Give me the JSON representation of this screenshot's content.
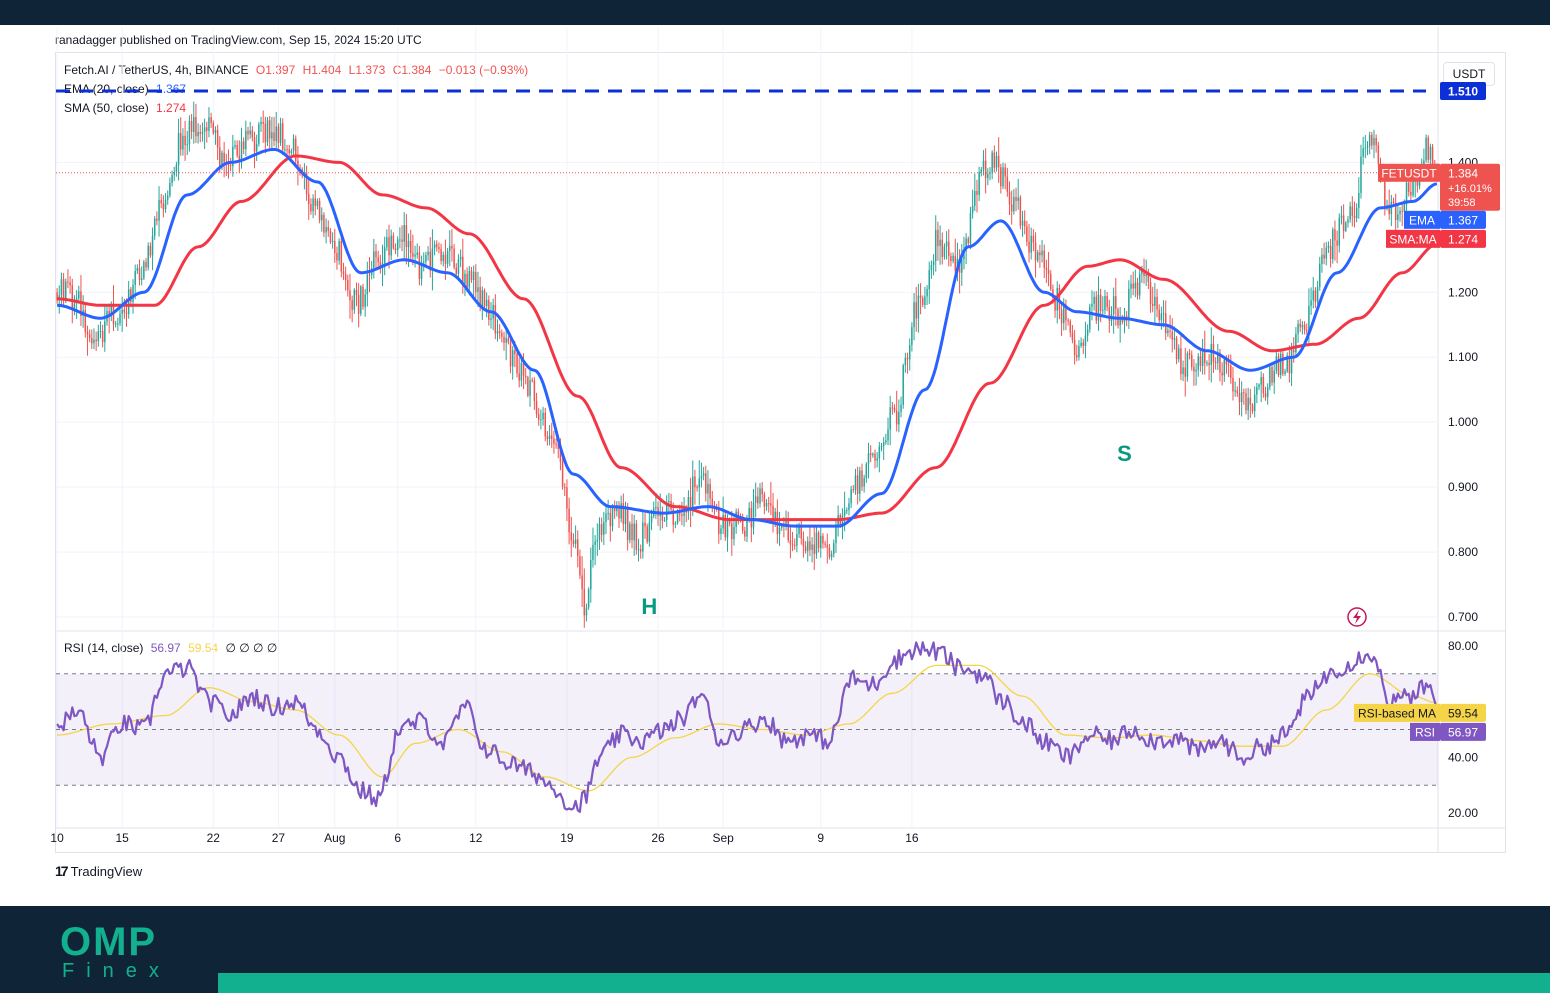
{
  "header": {
    "published": "ranadagger published on TradingView.com, Sep 15, 2024 15:20 UTC",
    "symbol": "Fetch.AI / TetherUS, 4h, BINANCE",
    "open": "O1.397",
    "high": "H1.404",
    "low": "L1.373",
    "close": "C1.384",
    "change": "−0.013 (−0.93%)",
    "ema_label": "EMA (20, close)",
    "ema_value": "1.367",
    "sma_label": "SMA (50, close)",
    "sma_value": "1.274",
    "rsi_label": "RSI (14, close)",
    "rsi_value": "56.97",
    "rsi_ma_value": "59.54",
    "rsi_extra": "∅ ∅ ∅ ∅",
    "currency": "USDT"
  },
  "colors": {
    "up": "#26a69a",
    "down": "#ef5350",
    "ema": "#2962ff",
    "sma": "#f23645",
    "rsi": "#7e57c2",
    "rsi_ma": "#f5d547",
    "resistance": "#0d2fd6",
    "annotation": "#089981"
  },
  "chart_data": {
    "type": "candlestick",
    "price_range": [
      0.68,
      1.57
    ],
    "y_ticks": [
      "0.700",
      "0.800",
      "0.900",
      "1.000",
      "1.100",
      "1.200",
      "1.400"
    ],
    "y_tick_values": [
      0.7,
      0.8,
      0.9,
      1.0,
      1.1,
      1.2,
      1.4
    ],
    "x_ticks": [
      "10",
      "15",
      "22",
      "27",
      "Aug",
      "6",
      "12",
      "19",
      "26",
      "Sep",
      "9",
      "16"
    ],
    "x_tick_dates": [
      "Jul 10",
      "Jul 15",
      "Jul 22",
      "Jul 27",
      "Aug 1",
      "Aug 6",
      "Aug 12",
      "Aug 19",
      "Aug 26",
      "Sep 1",
      "Sep 9",
      "Sep 16"
    ],
    "resistance": {
      "value": 1.51,
      "label": "1.510"
    },
    "price_keypoints": [
      [
        0,
        1.2
      ],
      [
        8,
        1.19
      ],
      [
        18,
        1.13
      ],
      [
        28,
        1.17
      ],
      [
        38,
        1.22
      ],
      [
        48,
        1.33
      ],
      [
        58,
        1.44
      ],
      [
        68,
        1.46
      ],
      [
        78,
        1.4
      ],
      [
        88,
        1.43
      ],
      [
        98,
        1.45
      ],
      [
        108,
        1.43
      ],
      [
        118,
        1.34
      ],
      [
        128,
        1.27
      ],
      [
        138,
        1.18
      ],
      [
        148,
        1.26
      ],
      [
        158,
        1.29
      ],
      [
        168,
        1.24
      ],
      [
        178,
        1.26
      ],
      [
        188,
        1.23
      ],
      [
        198,
        1.18
      ],
      [
        208,
        1.11
      ],
      [
        218,
        1.05
      ],
      [
        228,
        0.98
      ],
      [
        238,
        0.83
      ],
      [
        243,
        0.72
      ],
      [
        248,
        0.82
      ],
      [
        258,
        0.86
      ],
      [
        268,
        0.82
      ],
      [
        278,
        0.86
      ],
      [
        288,
        0.85
      ],
      [
        296,
        0.92
      ],
      [
        306,
        0.84
      ],
      [
        316,
        0.84
      ],
      [
        326,
        0.88
      ],
      [
        336,
        0.83
      ],
      [
        346,
        0.82
      ],
      [
        356,
        0.81
      ],
      [
        366,
        0.89
      ],
      [
        376,
        0.95
      ],
      [
        386,
        1.01
      ],
      [
        396,
        1.17
      ],
      [
        406,
        1.28
      ],
      [
        416,
        1.25
      ],
      [
        426,
        1.38
      ],
      [
        432,
        1.4
      ],
      [
        440,
        1.34
      ],
      [
        450,
        1.27
      ],
      [
        460,
        1.19
      ],
      [
        470,
        1.11
      ],
      [
        480,
        1.18
      ],
      [
        490,
        1.17
      ],
      [
        500,
        1.22
      ],
      [
        510,
        1.15
      ],
      [
        520,
        1.09
      ],
      [
        530,
        1.11
      ],
      [
        540,
        1.07
      ],
      [
        548,
        1.03
      ],
      [
        556,
        1.06
      ],
      [
        566,
        1.09
      ],
      [
        576,
        1.16
      ],
      [
        586,
        1.27
      ],
      [
        596,
        1.32
      ],
      [
        605,
        1.44
      ],
      [
        615,
        1.33
      ],
      [
        625,
        1.36
      ],
      [
        632,
        1.42
      ],
      [
        636,
        1.384
      ]
    ],
    "ema_keypoints": [
      [
        0,
        1.18
      ],
      [
        20,
        1.16
      ],
      [
        40,
        1.2
      ],
      [
        60,
        1.35
      ],
      [
        80,
        1.4
      ],
      [
        100,
        1.42
      ],
      [
        120,
        1.37
      ],
      [
        140,
        1.23
      ],
      [
        160,
        1.25
      ],
      [
        180,
        1.23
      ],
      [
        200,
        1.17
      ],
      [
        220,
        1.08
      ],
      [
        238,
        0.92
      ],
      [
        255,
        0.87
      ],
      [
        280,
        0.86
      ],
      [
        300,
        0.87
      ],
      [
        320,
        0.85
      ],
      [
        340,
        0.84
      ],
      [
        360,
        0.84
      ],
      [
        380,
        0.89
      ],
      [
        400,
        1.05
      ],
      [
        420,
        1.27
      ],
      [
        435,
        1.31
      ],
      [
        455,
        1.2
      ],
      [
        470,
        1.17
      ],
      [
        490,
        1.16
      ],
      [
        510,
        1.15
      ],
      [
        530,
        1.11
      ],
      [
        550,
        1.08
      ],
      [
        570,
        1.1
      ],
      [
        590,
        1.23
      ],
      [
        610,
        1.33
      ],
      [
        625,
        1.34
      ],
      [
        636,
        1.367
      ]
    ],
    "sma_keypoints": [
      [
        0,
        1.19
      ],
      [
        20,
        1.18
      ],
      [
        45,
        1.18
      ],
      [
        65,
        1.27
      ],
      [
        85,
        1.34
      ],
      [
        110,
        1.41
      ],
      [
        130,
        1.4
      ],
      [
        150,
        1.35
      ],
      [
        170,
        1.33
      ],
      [
        190,
        1.29
      ],
      [
        215,
        1.19
      ],
      [
        240,
        1.04
      ],
      [
        260,
        0.93
      ],
      [
        285,
        0.87
      ],
      [
        310,
        0.85
      ],
      [
        335,
        0.85
      ],
      [
        360,
        0.85
      ],
      [
        380,
        0.86
      ],
      [
        405,
        0.93
      ],
      [
        430,
        1.06
      ],
      [
        455,
        1.18
      ],
      [
        475,
        1.24
      ],
      [
        490,
        1.25
      ],
      [
        510,
        1.22
      ],
      [
        540,
        1.14
      ],
      [
        560,
        1.11
      ],
      [
        580,
        1.12
      ],
      [
        600,
        1.16
      ],
      [
        620,
        1.23
      ],
      [
        636,
        1.274
      ]
    ],
    "annotations": [
      {
        "text": "H",
        "index": 273,
        "price": 0.705
      },
      {
        "text": "S",
        "index": 492,
        "price": 0.94
      }
    ],
    "price_tags": [
      {
        "name": "FETUSDT",
        "value": "1.384",
        "extra1": "+16.01%",
        "extra2": "39:58"
      },
      {
        "name": "EMA",
        "value": "1.367"
      },
      {
        "name": "SMA:MA",
        "value": "1.274"
      }
    ],
    "rsi": {
      "range": [
        15,
        85
      ],
      "ticks": [
        "80.00",
        "40.00",
        "20.00"
      ],
      "tick_values": [
        80,
        40,
        20
      ],
      "bands": [
        70,
        50,
        30
      ],
      "keypoints": [
        [
          0,
          52
        ],
        [
          10,
          56
        ],
        [
          20,
          40
        ],
        [
          30,
          52
        ],
        [
          40,
          50
        ],
        [
          50,
          70
        ],
        [
          60,
          72
        ],
        [
          70,
          60
        ],
        [
          80,
          55
        ],
        [
          90,
          62
        ],
        [
          100,
          58
        ],
        [
          110,
          60
        ],
        [
          120,
          50
        ],
        [
          130,
          40
        ],
        [
          140,
          28
        ],
        [
          148,
          25
        ],
        [
          158,
          50
        ],
        [
          168,
          53
        ],
        [
          178,
          45
        ],
        [
          188,
          58
        ],
        [
          198,
          43
        ],
        [
          208,
          38
        ],
        [
          218,
          35
        ],
        [
          228,
          30
        ],
        [
          238,
          22
        ],
        [
          243,
          25
        ],
        [
          250,
          40
        ],
        [
          260,
          48
        ],
        [
          270,
          46
        ],
        [
          280,
          50
        ],
        [
          290,
          55
        ],
        [
          296,
          63
        ],
        [
          306,
          46
        ],
        [
          316,
          50
        ],
        [
          326,
          54
        ],
        [
          336,
          46
        ],
        [
          346,
          48
        ],
        [
          356,
          46
        ],
        [
          366,
          68
        ],
        [
          376,
          66
        ],
        [
          386,
          75
        ],
        [
          396,
          79
        ],
        [
          406,
          78
        ],
        [
          416,
          72
        ],
        [
          426,
          70
        ],
        [
          436,
          60
        ],
        [
          446,
          52
        ],
        [
          456,
          45
        ],
        [
          466,
          40
        ],
        [
          476,
          48
        ],
        [
          486,
          46
        ],
        [
          496,
          50
        ],
        [
          506,
          46
        ],
        [
          516,
          47
        ],
        [
          526,
          42
        ],
        [
          536,
          46
        ],
        [
          546,
          40
        ],
        [
          556,
          44
        ],
        [
          566,
          48
        ],
        [
          576,
          61
        ],
        [
          586,
          70
        ],
        [
          596,
          74
        ],
        [
          605,
          78
        ],
        [
          615,
          60
        ],
        [
          625,
          62
        ],
        [
          632,
          66
        ],
        [
          636,
          56.97
        ]
      ],
      "ma_keypoints": [
        [
          0,
          48
        ],
        [
          25,
          52
        ],
        [
          50,
          55
        ],
        [
          70,
          65
        ],
        [
          90,
          60
        ],
        [
          110,
          57
        ],
        [
          130,
          48
        ],
        [
          150,
          33
        ],
        [
          165,
          45
        ],
        [
          185,
          50
        ],
        [
          205,
          42
        ],
        [
          225,
          33
        ],
        [
          245,
          28
        ],
        [
          265,
          40
        ],
        [
          285,
          47
        ],
        [
          305,
          52
        ],
        [
          325,
          50
        ],
        [
          345,
          48
        ],
        [
          365,
          52
        ],
        [
          385,
          63
        ],
        [
          405,
          73
        ],
        [
          425,
          73
        ],
        [
          445,
          62
        ],
        [
          465,
          48
        ],
        [
          485,
          47
        ],
        [
          505,
          48
        ],
        [
          525,
          46
        ],
        [
          545,
          44
        ],
        [
          565,
          44
        ],
        [
          585,
          57
        ],
        [
          605,
          70
        ],
        [
          625,
          62
        ],
        [
          636,
          59.54
        ]
      ],
      "tags": [
        {
          "name": "RSI-based MA",
          "value": "59.54"
        },
        {
          "name": "RSI",
          "value": "56.97"
        }
      ]
    }
  },
  "footer": {
    "tradingview": "TradingView",
    "brand_top": "OMP",
    "brand_bottom": "Finex"
  }
}
